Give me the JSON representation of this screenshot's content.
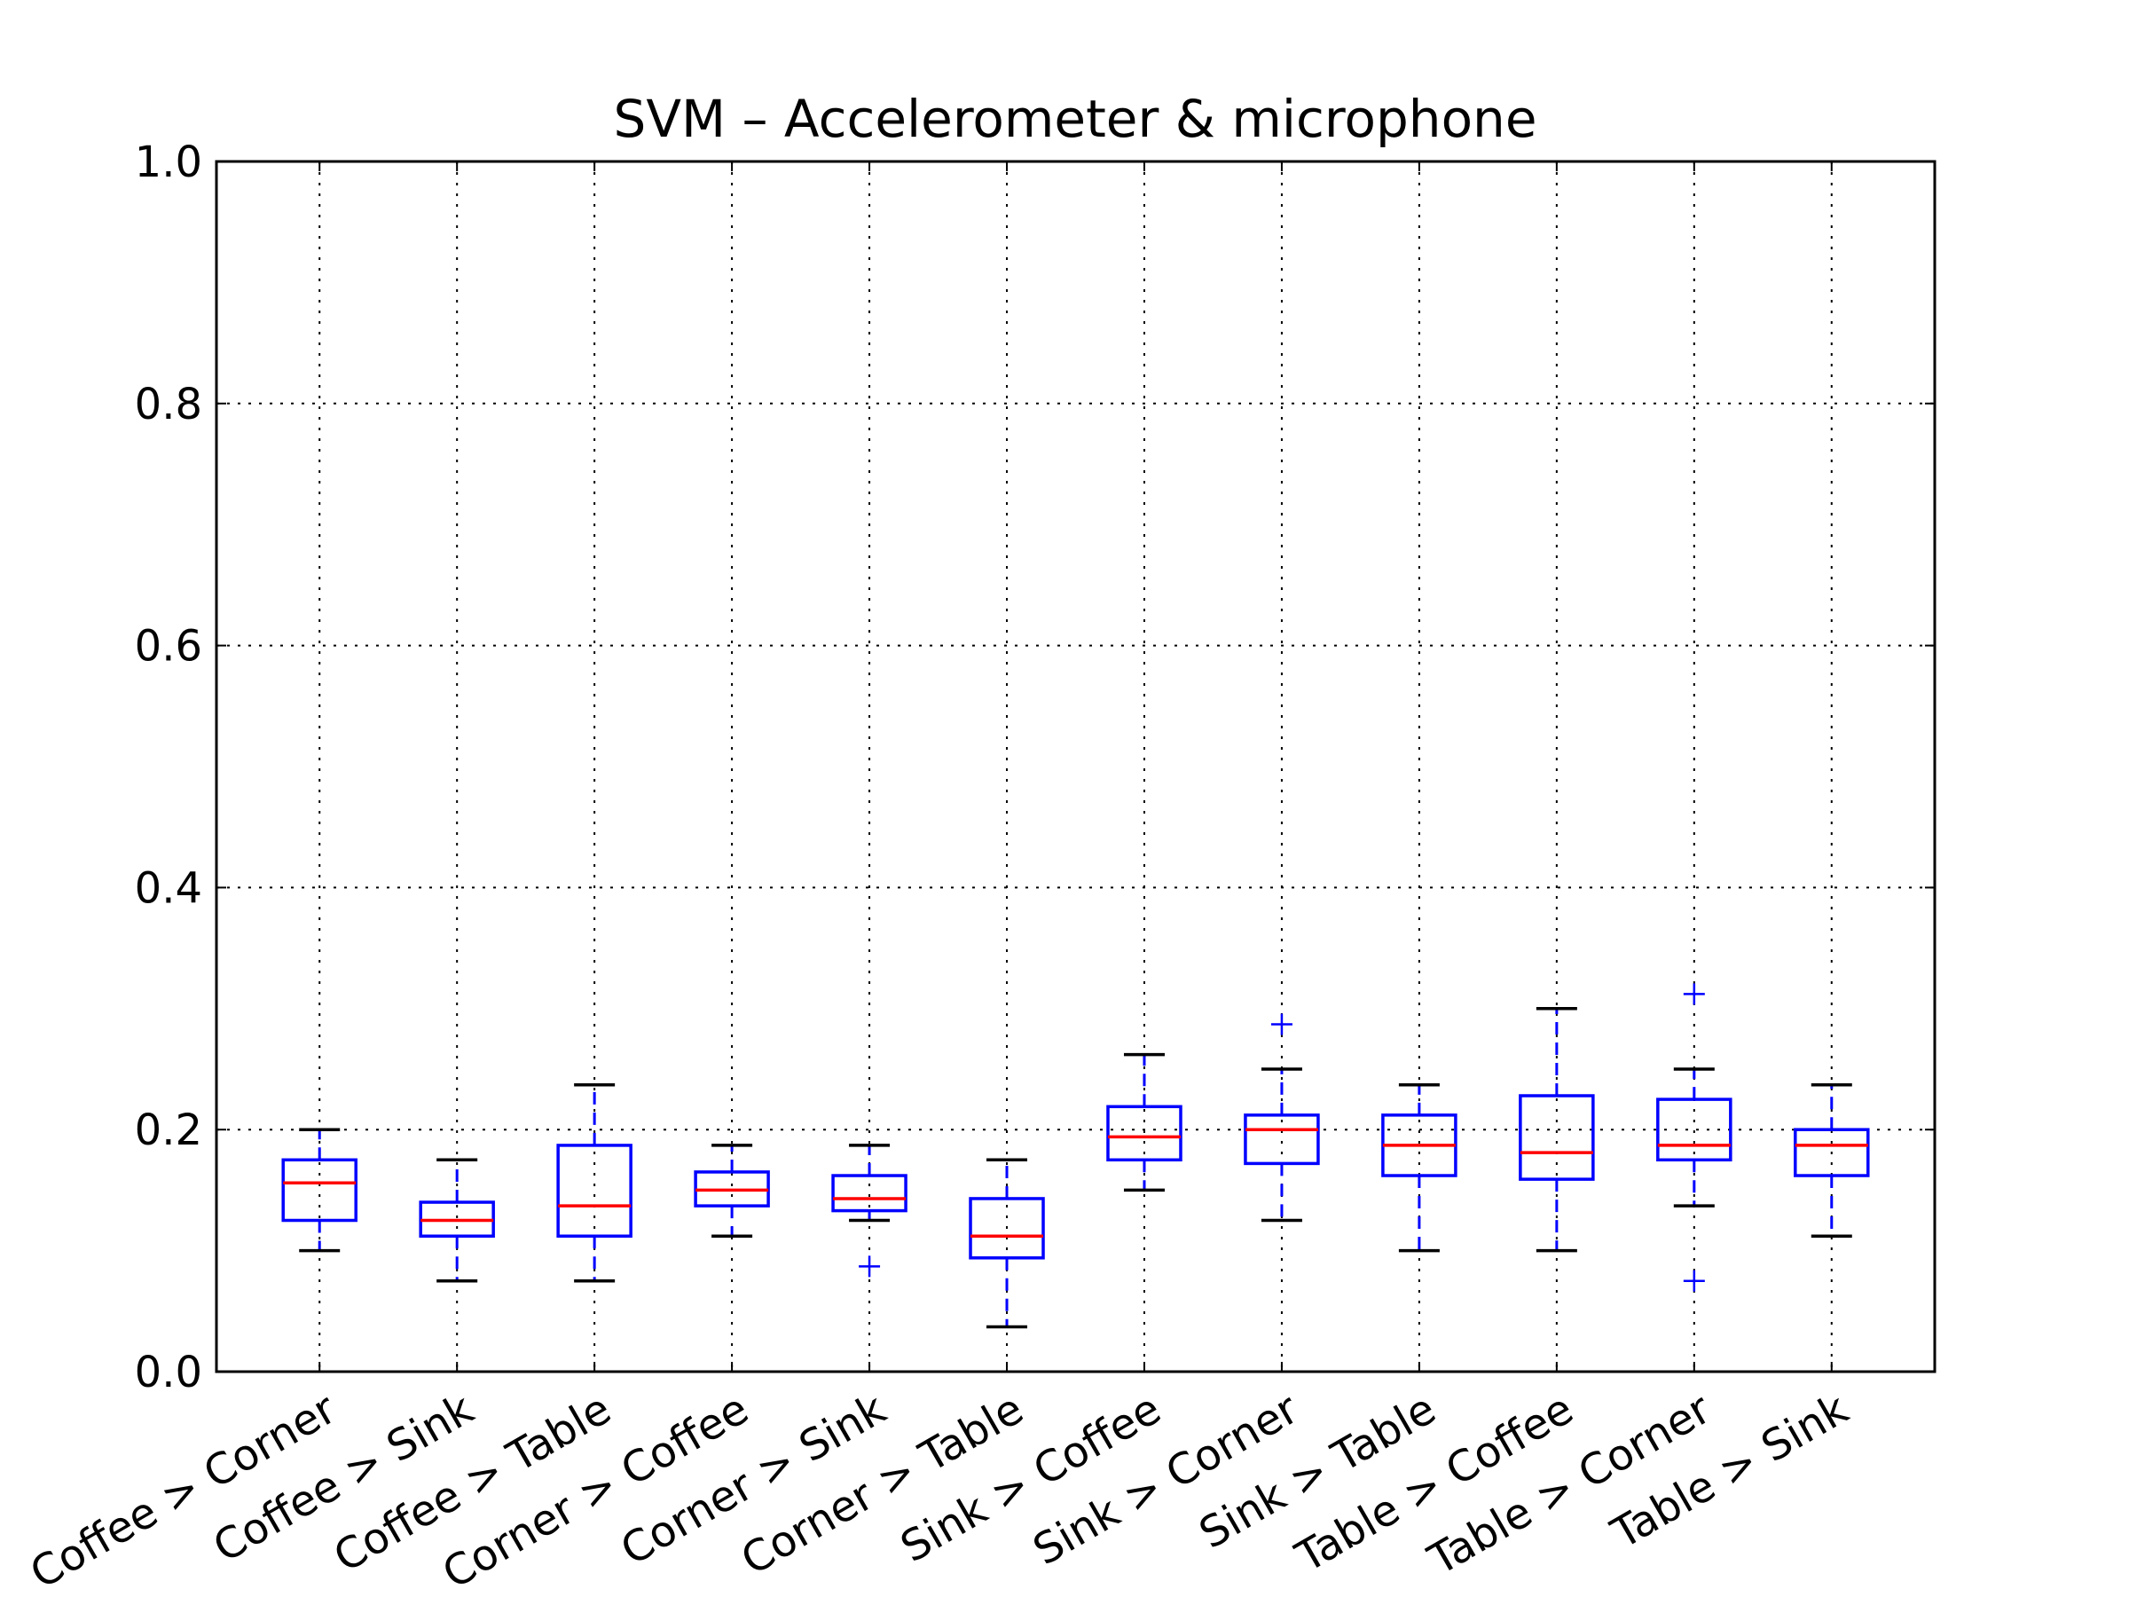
{
  "chart_data": {
    "type": "box",
    "title": "SVM – Accelerometer & microphone",
    "xlabel": "",
    "ylabel": "",
    "ylim": [
      0.0,
      1.0
    ],
    "yticks": [
      "0.0",
      "0.2",
      "0.4",
      "0.6",
      "0.8",
      "1.0"
    ],
    "grid": true,
    "categories": [
      "Coffee > Corner",
      "Coffee > Sink",
      "Coffee > Table",
      "Corner > Coffee",
      "Corner > Sink",
      "Corner > Table",
      "Sink > Coffee",
      "Sink > Corner",
      "Sink > Table",
      "Table > Coffee",
      "Table > Corner",
      "Table > Sink"
    ],
    "boxes": [
      {
        "whisker_low": 0.1,
        "q1": 0.125,
        "median": 0.156,
        "q3": 0.175,
        "whisker_high": 0.2,
        "outliers": []
      },
      {
        "whisker_low": 0.075,
        "q1": 0.112,
        "median": 0.125,
        "q3": 0.14,
        "whisker_high": 0.175,
        "outliers": []
      },
      {
        "whisker_low": 0.075,
        "q1": 0.112,
        "median": 0.137,
        "q3": 0.187,
        "whisker_high": 0.237,
        "outliers": []
      },
      {
        "whisker_low": 0.112,
        "q1": 0.137,
        "median": 0.15,
        "q3": 0.165,
        "whisker_high": 0.187,
        "outliers": []
      },
      {
        "whisker_low": 0.125,
        "q1": 0.133,
        "median": 0.143,
        "q3": 0.162,
        "whisker_high": 0.187,
        "outliers": [
          0.087
        ]
      },
      {
        "whisker_low": 0.037,
        "q1": 0.094,
        "median": 0.112,
        "q3": 0.143,
        "whisker_high": 0.175,
        "outliers": []
      },
      {
        "whisker_low": 0.15,
        "q1": 0.175,
        "median": 0.194,
        "q3": 0.219,
        "whisker_high": 0.262,
        "outliers": []
      },
      {
        "whisker_low": 0.125,
        "q1": 0.172,
        "median": 0.2,
        "q3": 0.212,
        "whisker_high": 0.25,
        "outliers": [
          0.287
        ]
      },
      {
        "whisker_low": 0.1,
        "q1": 0.162,
        "median": 0.187,
        "q3": 0.212,
        "whisker_high": 0.237,
        "outliers": []
      },
      {
        "whisker_low": 0.1,
        "q1": 0.159,
        "median": 0.181,
        "q3": 0.228,
        "whisker_high": 0.3,
        "outliers": []
      },
      {
        "whisker_low": 0.137,
        "q1": 0.175,
        "median": 0.187,
        "q3": 0.225,
        "whisker_high": 0.25,
        "outliers": [
          0.312,
          0.075
        ]
      },
      {
        "whisker_low": 0.112,
        "q1": 0.162,
        "median": 0.187,
        "q3": 0.2,
        "whisker_high": 0.237,
        "outliers": []
      }
    ],
    "colors": {
      "box": "#0000ff",
      "median": "#ff0000",
      "cap": "#000000",
      "grid": "#000000",
      "outlier": "#0000ff"
    }
  }
}
